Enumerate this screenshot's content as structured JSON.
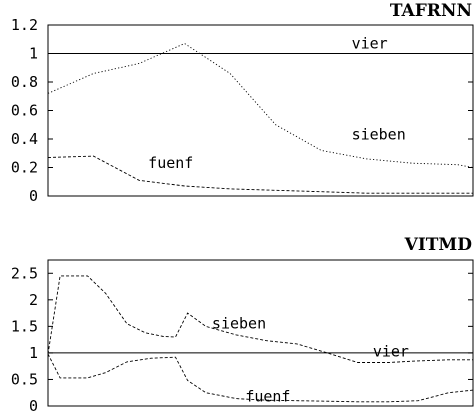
{
  "chart_data": [
    {
      "type": "line",
      "title": "TAFRNN",
      "xlabel": "",
      "ylabel": "",
      "ylim": [
        0,
        1.2
      ],
      "yticks": [
        "0",
        "0.2",
        "0.4",
        "0.6",
        "0.8",
        "1",
        "1.2"
      ],
      "ytick_values": [
        0,
        0.2,
        0.4,
        0.6,
        0.8,
        1,
        1.2
      ],
      "xlim": [
        0,
        14
      ],
      "grid": false,
      "legend": "inline labels",
      "series": [
        {
          "name": "vier",
          "style": "solid",
          "color": "#000000",
          "x": [
            0,
            14
          ],
          "values": [
            1.0,
            1.0
          ],
          "label_at": [
            10,
            1.07
          ]
        },
        {
          "name": "sieben",
          "style": "dotted",
          "color": "#000000",
          "x": [
            0,
            1.5,
            3.0,
            4.5,
            6.0,
            7.5,
            9.0,
            10.5,
            12.0,
            13.5,
            14
          ],
          "values": [
            0.72,
            0.86,
            0.93,
            1.07,
            0.86,
            0.5,
            0.32,
            0.26,
            0.23,
            0.22,
            0.2
          ],
          "label_at": [
            10,
            0.43
          ]
        },
        {
          "name": "fuenf",
          "style": "dashed",
          "color": "#000000",
          "x": [
            0,
            1.5,
            3.0,
            4.5,
            6.0,
            7.5,
            9.0,
            10.5,
            12.0,
            13.5,
            14
          ],
          "values": [
            0.27,
            0.28,
            0.11,
            0.07,
            0.05,
            0.04,
            0.03,
            0.02,
            0.02,
            0.02,
            0.02
          ],
          "label_at": [
            3.3,
            0.23
          ]
        }
      ]
    },
    {
      "type": "line",
      "title": "VITMD",
      "xlabel": "",
      "ylabel": "",
      "ylim": [
        0,
        2.75
      ],
      "yticks": [
        "0",
        "0.5",
        "1",
        "1.5",
        "2",
        "2.5"
      ],
      "ytick_values": [
        0,
        0.5,
        1,
        1.5,
        2,
        2.5
      ],
      "xlim": [
        0,
        14
      ],
      "grid": false,
      "legend": "inline labels",
      "series": [
        {
          "name": "vier",
          "style": "solid",
          "color": "#000000",
          "x": [
            0,
            14
          ],
          "values": [
            1.0,
            1.0
          ],
          "label_at": [
            10.7,
            1.03
          ]
        },
        {
          "name": "sieben",
          "style": "dashed",
          "color": "#000000",
          "x": [
            0,
            0.4,
            1.3,
            1.9,
            2.6,
            3.2,
            3.8,
            4.2,
            4.6,
            5.2,
            6.2,
            7.2,
            8.2,
            9.2,
            10.2,
            11.2,
            12.2,
            13.2,
            14
          ],
          "values": [
            0.98,
            2.45,
            2.45,
            2.12,
            1.55,
            1.38,
            1.31,
            1.3,
            1.75,
            1.5,
            1.34,
            1.23,
            1.17,
            1.0,
            0.82,
            0.82,
            0.85,
            0.87,
            0.87
          ],
          "label_at": [
            5.4,
            1.55
          ]
        },
        {
          "name": "fuenf",
          "style": "dashed",
          "color": "#000000",
          "x": [
            0,
            0.4,
            1.3,
            1.9,
            2.6,
            3.4,
            4.2,
            4.6,
            5.2,
            6.2,
            7.2,
            8.2,
            9.2,
            10.2,
            11.2,
            12.2,
            13.2,
            14
          ],
          "values": [
            0.98,
            0.53,
            0.53,
            0.63,
            0.83,
            0.9,
            0.92,
            0.48,
            0.25,
            0.14,
            0.11,
            0.1,
            0.09,
            0.08,
            0.08,
            0.1,
            0.25,
            0.3
          ],
          "label_at": [
            6.5,
            0.18
          ]
        }
      ]
    }
  ]
}
